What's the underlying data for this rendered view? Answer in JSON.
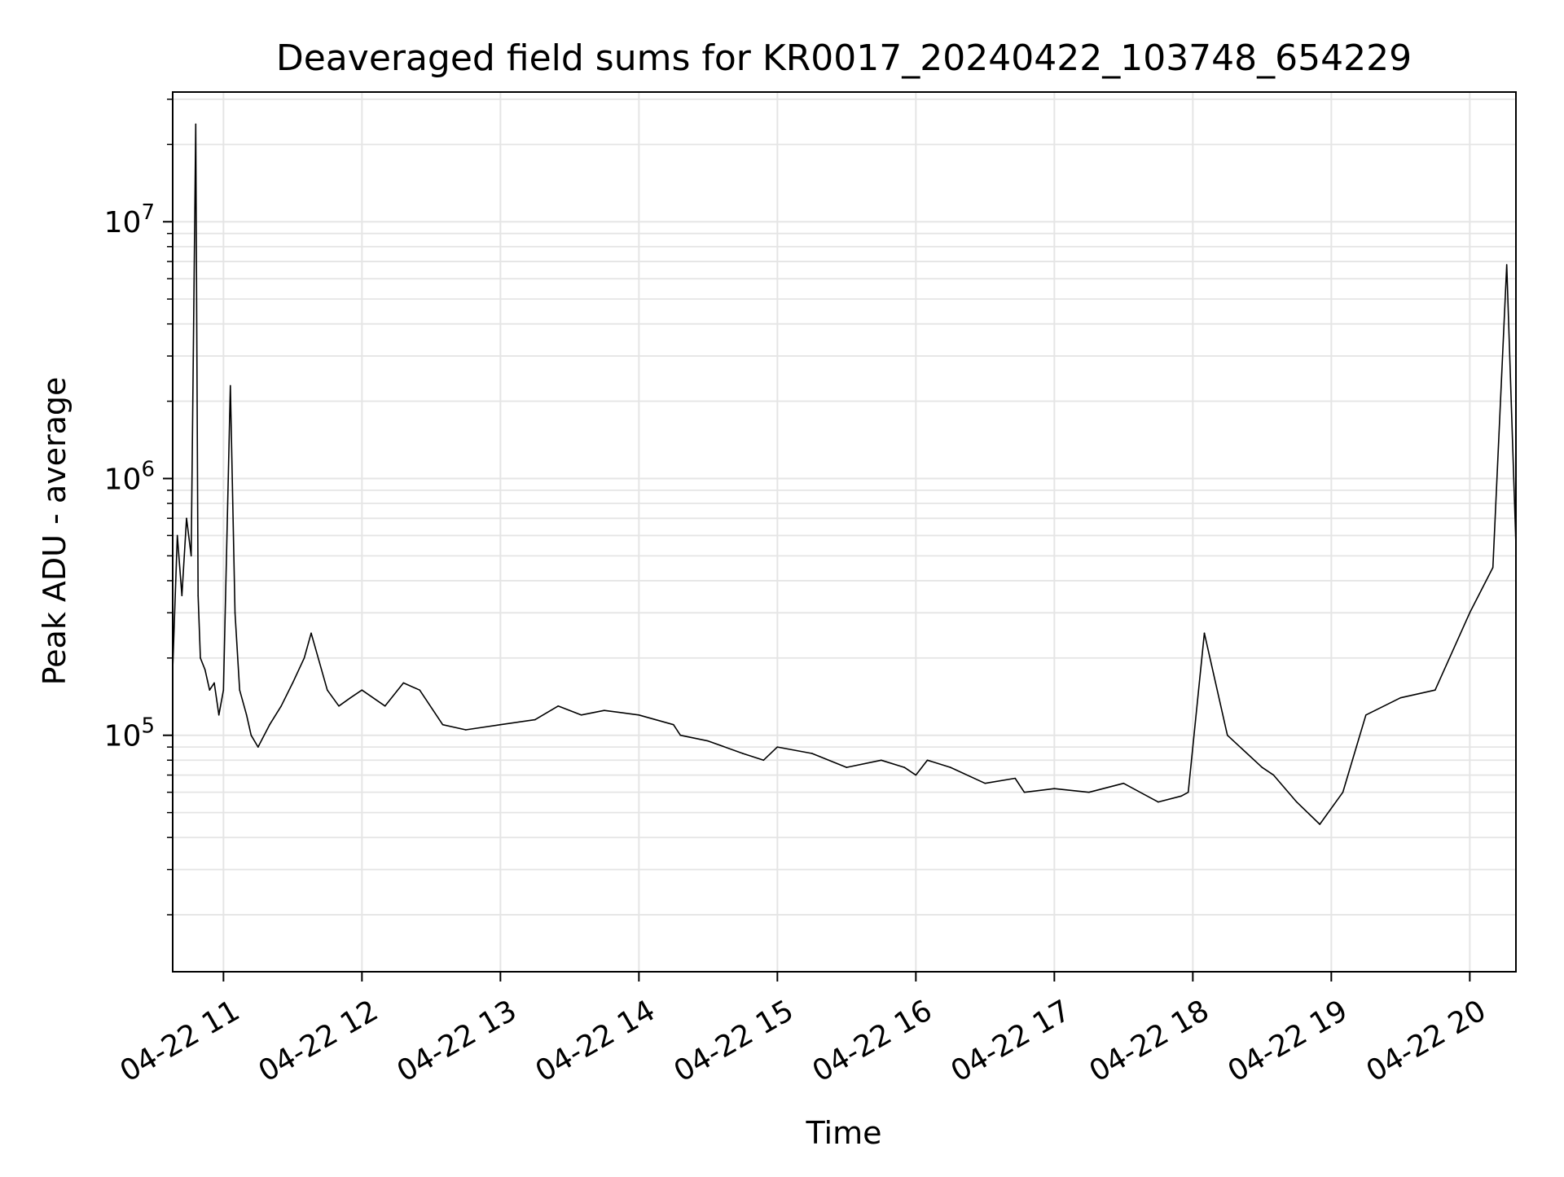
{
  "chart_data": {
    "type": "line",
    "title": "Deaveraged field sums for KR0017_20240422_103748_654229",
    "xlabel": "Time",
    "ylabel": "Peak ADU - average",
    "x_scale": "time",
    "y_scale": "log",
    "xlim": [
      "2024-04-22 10:38",
      "2024-04-22 20:20"
    ],
    "ylim": [
      12000,
      32000000
    ],
    "grid": true,
    "legend": "none",
    "line_color": "#000000",
    "grid_color": "#e5e5e5",
    "x_tick_labels": [
      "04-22 11",
      "04-22 12",
      "04-22 13",
      "04-22 14",
      "04-22 15",
      "04-22 16",
      "04-22 17",
      "04-22 18",
      "04-22 19",
      "04-22 20"
    ],
    "x_tick_values": [
      "2024-04-22 11:00",
      "2024-04-22 12:00",
      "2024-04-22 13:00",
      "2024-04-22 14:00",
      "2024-04-22 15:00",
      "2024-04-22 16:00",
      "2024-04-22 17:00",
      "2024-04-22 18:00",
      "2024-04-22 19:00",
      "2024-04-22 20:00"
    ],
    "y_ticks": [
      {
        "value": 100000,
        "base": "10",
        "exp": "5"
      },
      {
        "value": 1000000,
        "base": "10",
        "exp": "6"
      },
      {
        "value": 10000000,
        "base": "10",
        "exp": "7"
      }
    ],
    "series": [
      {
        "x": [
          "2024-04-22 10:38",
          "2024-04-22 10:40",
          "2024-04-22 10:42",
          "2024-04-22 10:44",
          "2024-04-22 10:46",
          "2024-04-22 10:48",
          "2024-04-22 10:49",
          "2024-04-22 10:50",
          "2024-04-22 10:52",
          "2024-04-22 10:54",
          "2024-04-22 10:56",
          "2024-04-22 10:58",
          "2024-04-22 11:00",
          "2024-04-22 11:03",
          "2024-04-22 11:05",
          "2024-04-22 11:07",
          "2024-04-22 11:10",
          "2024-04-22 11:12",
          "2024-04-22 11:15",
          "2024-04-22 11:20",
          "2024-04-22 11:25",
          "2024-04-22 11:30",
          "2024-04-22 11:35",
          "2024-04-22 11:38",
          "2024-04-22 11:45",
          "2024-04-22 11:50",
          "2024-04-22 11:55",
          "2024-04-22 12:00",
          "2024-04-22 12:10",
          "2024-04-22 12:18",
          "2024-04-22 12:25",
          "2024-04-22 12:35",
          "2024-04-22 12:45",
          "2024-04-22 13:00",
          "2024-04-22 13:15",
          "2024-04-22 13:25",
          "2024-04-22 13:35",
          "2024-04-22 13:45",
          "2024-04-22 14:00",
          "2024-04-22 14:15",
          "2024-04-22 14:18",
          "2024-04-22 14:30",
          "2024-04-22 14:45",
          "2024-04-22 14:54",
          "2024-04-22 15:00",
          "2024-04-22 15:15",
          "2024-04-22 15:30",
          "2024-04-22 15:45",
          "2024-04-22 15:55",
          "2024-04-22 16:00",
          "2024-04-22 16:05",
          "2024-04-22 16:15",
          "2024-04-22 16:30",
          "2024-04-22 16:43",
          "2024-04-22 16:47",
          "2024-04-22 17:00",
          "2024-04-22 17:15",
          "2024-04-22 17:30",
          "2024-04-22 17:45",
          "2024-04-22 17:55",
          "2024-04-22 17:58",
          "2024-04-22 18:05",
          "2024-04-22 18:15",
          "2024-04-22 18:30",
          "2024-04-22 18:35",
          "2024-04-22 18:45",
          "2024-04-22 18:55",
          "2024-04-22 19:05",
          "2024-04-22 19:15",
          "2024-04-22 19:30",
          "2024-04-22 19:45",
          "2024-04-22 20:00",
          "2024-04-22 20:10",
          "2024-04-22 20:16",
          "2024-04-22 20:20"
        ],
        "y": [
          180000,
          600000,
          350000,
          700000,
          500000,
          24000000,
          350000,
          200000,
          180000,
          150000,
          160000,
          120000,
          150000,
          2300000,
          300000,
          150000,
          120000,
          100000,
          90000,
          110000,
          130000,
          160000,
          200000,
          250000,
          150000,
          130000,
          140000,
          150000,
          130000,
          160000,
          150000,
          110000,
          105000,
          110000,
          115000,
          130000,
          120000,
          125000,
          120000,
          110000,
          100000,
          95000,
          85000,
          80000,
          90000,
          85000,
          75000,
          80000,
          75000,
          70000,
          80000,
          75000,
          65000,
          68000,
          60000,
          62000,
          60000,
          65000,
          55000,
          58000,
          60000,
          250000,
          100000,
          75000,
          70000,
          55000,
          45000,
          60000,
          120000,
          140000,
          150000,
          300000,
          450000,
          6800000,
          550000
        ]
      }
    ]
  }
}
